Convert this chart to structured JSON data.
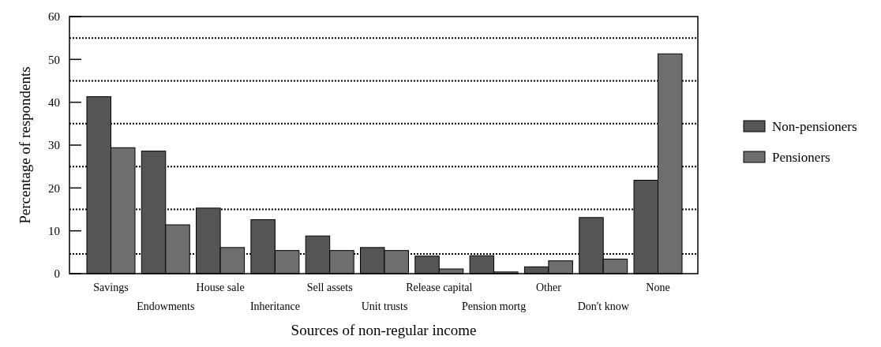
{
  "chart_data": {
    "type": "bar",
    "xlabel": "Sources of non-regular income",
    "ylabel": "Percentage of respondents",
    "categories": [
      "Savings",
      "Endowments",
      "House sale",
      "Inheritance",
      "Sell assets",
      "Unit trusts",
      "Release capital",
      "Pension mortg",
      "Other",
      "Don't know",
      "None"
    ],
    "series": [
      {
        "name": "Non-pensioners",
        "color": "#555555",
        "values": [
          41.3,
          28.6,
          15.3,
          12.6,
          8.8,
          6.1,
          4.1,
          4.2,
          1.6,
          13.1,
          21.8
        ]
      },
      {
        "name": "Pensioners",
        "color": "#6e6e6e",
        "values": [
          29.4,
          11.4,
          6.1,
          5.4,
          5.4,
          5.4,
          1.1,
          0.4,
          3.0,
          3.4,
          51.3
        ]
      }
    ],
    "ylim": [
      0,
      60
    ],
    "yticks": [
      0,
      10,
      20,
      30,
      40,
      50,
      60
    ],
    "grid": false,
    "legend": "right",
    "ref_lines": [
      {
        "axis": "y",
        "value": 55,
        "line_style": "dotted"
      },
      {
        "axis": "y",
        "value": 45,
        "line_style": "dotted"
      },
      {
        "axis": "y",
        "value": 35,
        "line_style": "dotted"
      },
      {
        "axis": "y",
        "value": 25,
        "line_style": "dotted"
      },
      {
        "axis": "y",
        "value": 15,
        "line_style": "dotted"
      },
      {
        "axis": "y",
        "value": 4.6,
        "line_style": "dotted"
      }
    ]
  }
}
